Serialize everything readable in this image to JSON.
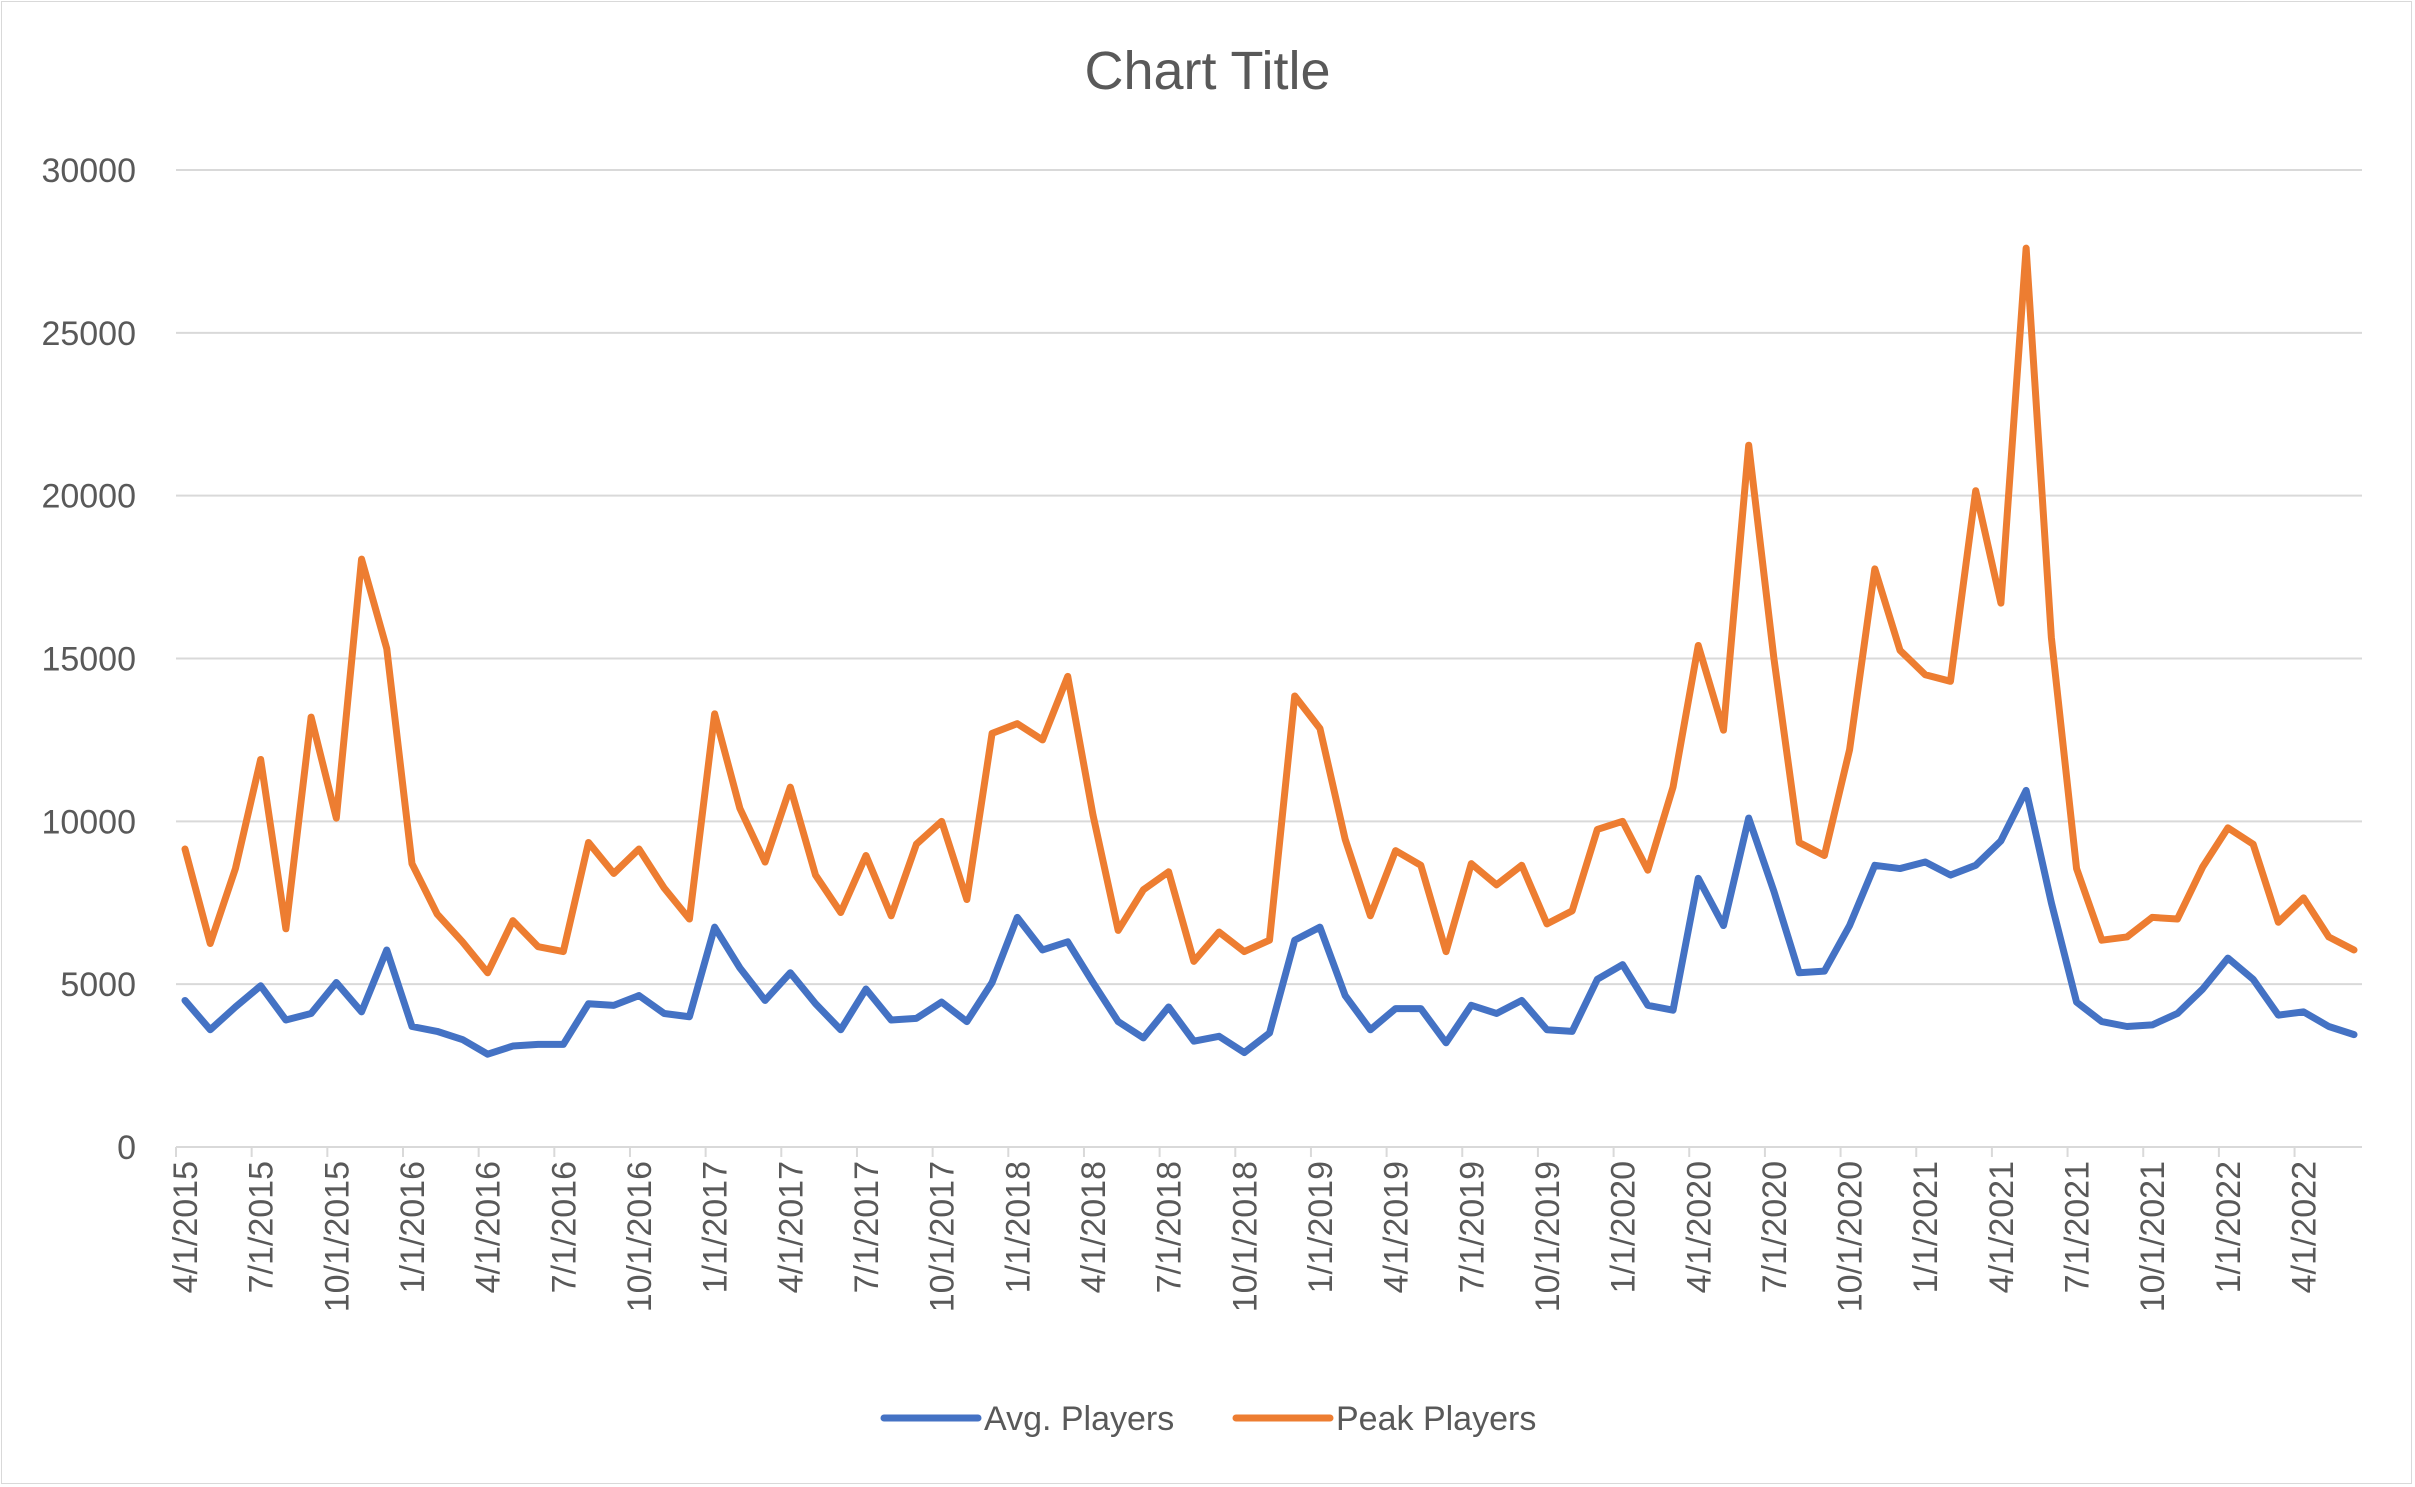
{
  "chart_data": {
    "type": "line",
    "title": "Chart Title",
    "xlabel": "",
    "ylabel": "",
    "ylim": [
      0,
      30000
    ],
    "yticks": [
      "0",
      "5000",
      "10000",
      "15000",
      "20000",
      "25000",
      "30000"
    ],
    "grid": true,
    "legend_position": "bottom",
    "xtick_labels": [
      "4/1/2015",
      "7/1/2015",
      "10/1/2015",
      "1/1/2016",
      "4/1/2016",
      "7/1/2016",
      "10/1/2016",
      "1/1/2017",
      "4/1/2017",
      "7/1/2017",
      "10/1/2017",
      "1/1/2018",
      "4/1/2018",
      "7/1/2018",
      "10/1/2018",
      "1/1/2019",
      "4/1/2019",
      "7/1/2019",
      "10/1/2019",
      "1/1/2020",
      "4/1/2020",
      "7/1/2020",
      "10/1/2020",
      "1/1/2021",
      "4/1/2021",
      "7/1/2021",
      "10/1/2021",
      "1/1/2022",
      "4/1/2022"
    ],
    "x_start": "4/1/2015",
    "x_end": "9/1/2022",
    "series": [
      {
        "name": "Avg. Players",
        "color": "#4472C4",
        "values": [
          4500,
          3600,
          4300,
          4950,
          3900,
          4100,
          5050,
          4150,
          6050,
          3700,
          3550,
          3300,
          2850,
          3100,
          3150,
          3150,
          4400,
          4350,
          4650,
          4100,
          4000,
          6750,
          5500,
          4500,
          5350,
          4400,
          3600,
          4850,
          3900,
          3950,
          4450,
          3850,
          5050,
          7050,
          6050,
          6300,
          5050,
          3850,
          3350,
          4300,
          3250,
          3400,
          2900,
          3500,
          6350,
          6750,
          4650,
          3600,
          4250,
          4250,
          3200,
          4350,
          4100,
          4500,
          3600,
          3550,
          5150,
          5600,
          4350,
          4200,
          8250,
          6800,
          10100,
          7850,
          5350,
          5400,
          6800,
          8650,
          8550,
          8750,
          8350,
          8650,
          9400,
          10950,
          7500,
          4450,
          3850,
          3700,
          3750,
          4100,
          4850,
          5800,
          5150,
          4050,
          4150,
          3700,
          3450
        ]
      },
      {
        "name": "Peak Players",
        "color": "#ED7D31",
        "values": [
          9150,
          6250,
          8550,
          11900,
          6700,
          13200,
          10100,
          18050,
          15300,
          8700,
          7150,
          6300,
          5350,
          6950,
          6150,
          6000,
          9350,
          8400,
          9150,
          7950,
          7000,
          13300,
          10400,
          8750,
          11050,
          8350,
          7200,
          8950,
          7100,
          9300,
          10000,
          7600,
          12700,
          13000,
          12500,
          14450,
          10200,
          6650,
          7900,
          8450,
          5700,
          6600,
          6000,
          6350,
          13850,
          12850,
          9450,
          7100,
          9100,
          8650,
          6000,
          8700,
          8050,
          8650,
          6850,
          7250,
          9750,
          10000,
          8500,
          11050,
          15400,
          12800,
          21550,
          15000,
          9350,
          8950,
          12200,
          17750,
          15250,
          14500,
          14300,
          20150,
          16700,
          27600,
          15650,
          8550,
          6350,
          6450,
          7050,
          7000,
          8600,
          9800,
          9300,
          6900,
          7650,
          6450,
          6050
        ]
      }
    ]
  }
}
